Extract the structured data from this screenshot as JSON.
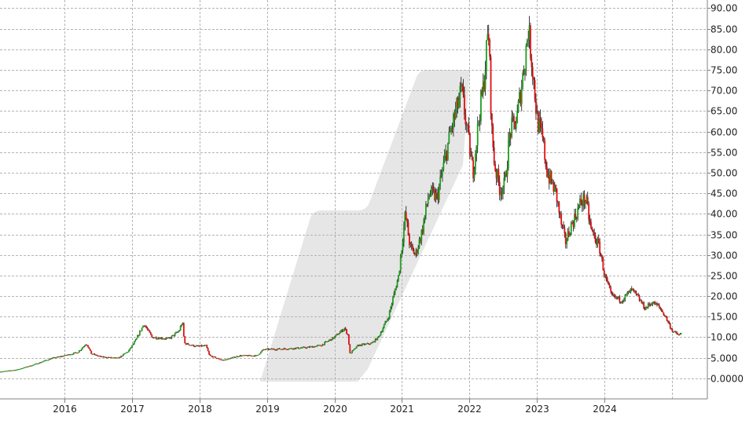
{
  "chart_data": {
    "type": "candlestick",
    "title": "",
    "xlabel": "",
    "ylabel": "",
    "ylim": [
      -5,
      92
    ],
    "y_ticks": [
      {
        "label": "90.00",
        "value": 90
      },
      {
        "label": "85.00",
        "value": 85
      },
      {
        "label": "80.00",
        "value": 80
      },
      {
        "label": "75.00",
        "value": 75
      },
      {
        "label": "70.00",
        "value": 70
      },
      {
        "label": "65.00",
        "value": 65
      },
      {
        "label": "60.00",
        "value": 60
      },
      {
        "label": "55.00",
        "value": 55
      },
      {
        "label": "50.00",
        "value": 50
      },
      {
        "label": "45.00",
        "value": 45
      },
      {
        "label": "40.00",
        "value": 40
      },
      {
        "label": "35.00",
        "value": 35
      },
      {
        "label": "30.00",
        "value": 30
      },
      {
        "label": "25.00",
        "value": 25
      },
      {
        "label": "20.00",
        "value": 20
      },
      {
        "label": "15.00",
        "value": 15
      },
      {
        "label": "10.00",
        "value": 10
      },
      {
        "label": "5.000",
        "value": 5
      },
      {
        "label": "0.0000",
        "value": 0
      }
    ],
    "x_ticks": [
      {
        "label": "2016",
        "value": 2016
      },
      {
        "label": "2017",
        "value": 2017
      },
      {
        "label": "2018",
        "value": 2018
      },
      {
        "label": "2019",
        "value": 2019
      },
      {
        "label": "2020",
        "value": 2020
      },
      {
        "label": "2021",
        "value": 2021
      },
      {
        "label": "2022",
        "value": 2022
      },
      {
        "label": "2023",
        "value": 2023
      },
      {
        "label": "2024",
        "value": 2024
      }
    ],
    "x_range": [
      2015.05,
      2025.52
    ],
    "grid": true,
    "colors": {
      "up": "#1e9e1e",
      "down": "#e01010",
      "wick": "#111111",
      "grid": "#b4b4b4",
      "watermark": "#e6e6e6"
    },
    "price_path": [
      [
        2015.05,
        1.6
      ],
      [
        2015.3,
        2.1
      ],
      [
        2015.55,
        3.3
      ],
      [
        2015.8,
        4.8
      ],
      [
        2016.0,
        5.5
      ],
      [
        2016.2,
        6.3
      ],
      [
        2016.33,
        8.5
      ],
      [
        2016.4,
        6.0
      ],
      [
        2016.55,
        5.2
      ],
      [
        2016.8,
        4.9
      ],
      [
        2016.95,
        6.6
      ],
      [
        2017.05,
        9.0
      ],
      [
        2017.18,
        13.2
      ],
      [
        2017.3,
        10.0
      ],
      [
        2017.55,
        9.6
      ],
      [
        2017.7,
        11.5
      ],
      [
        2017.75,
        13.8
      ],
      [
        2017.78,
        8.5
      ],
      [
        2017.95,
        7.8
      ],
      [
        2018.1,
        7.9
      ],
      [
        2018.15,
        5.5
      ],
      [
        2018.35,
        4.4
      ],
      [
        2018.6,
        5.5
      ],
      [
        2018.85,
        5.5
      ],
      [
        2018.95,
        7.0
      ],
      [
        2019.3,
        7.2
      ],
      [
        2019.6,
        7.5
      ],
      [
        2019.8,
        8.0
      ],
      [
        2020.0,
        10.0
      ],
      [
        2020.15,
        12.2
      ],
      [
        2020.2,
        10.5
      ],
      [
        2020.23,
        6.0
      ],
      [
        2020.35,
        8.0
      ],
      [
        2020.55,
        8.5
      ],
      [
        2020.65,
        10.0
      ],
      [
        2020.8,
        15.0
      ],
      [
        2020.95,
        25.0
      ],
      [
        2021.05,
        40.0
      ],
      [
        2021.12,
        32.0
      ],
      [
        2021.2,
        30.0
      ],
      [
        2021.3,
        36.0
      ],
      [
        2021.4,
        45.0
      ],
      [
        2021.52,
        44.0
      ],
      [
        2021.62,
        52.0
      ],
      [
        2021.72,
        60.0
      ],
      [
        2021.82,
        66.0
      ],
      [
        2021.88,
        70.0
      ],
      [
        2021.95,
        62.0
      ],
      [
        2022.05,
        50.0
      ],
      [
        2022.15,
        65.0
      ],
      [
        2022.2,
        70.0
      ],
      [
        2022.28,
        85.0
      ],
      [
        2022.33,
        60.0
      ],
      [
        2022.37,
        52.0
      ],
      [
        2022.45,
        46.0
      ],
      [
        2022.52,
        47.0
      ],
      [
        2022.6,
        60.0
      ],
      [
        2022.7,
        63.0
      ],
      [
        2022.8,
        75.0
      ],
      [
        2022.87,
        85.0
      ],
      [
        2022.93,
        76.0
      ],
      [
        2023.0,
        63.0
      ],
      [
        2023.08,
        58.0
      ],
      [
        2023.15,
        50.0
      ],
      [
        2023.28,
        45.0
      ],
      [
        2023.35,
        38.0
      ],
      [
        2023.42,
        33.0
      ],
      [
        2023.5,
        37.0
      ],
      [
        2023.58,
        40.0
      ],
      [
        2023.65,
        43.0
      ],
      [
        2023.72,
        43.5
      ],
      [
        2023.8,
        36.0
      ],
      [
        2023.92,
        32.0
      ],
      [
        2024.0,
        25.0
      ],
      [
        2024.1,
        20.0
      ],
      [
        2024.25,
        19.0
      ],
      [
        2024.4,
        21.5
      ],
      [
        2024.5,
        19.5
      ],
      [
        2024.6,
        17.0
      ],
      [
        2024.7,
        18.5
      ],
      [
        2024.8,
        17.5
      ],
      [
        2024.9,
        15.0
      ],
      [
        2025.0,
        11.5
      ],
      [
        2025.1,
        10.5
      ],
      [
        2025.15,
        11.0
      ]
    ]
  }
}
